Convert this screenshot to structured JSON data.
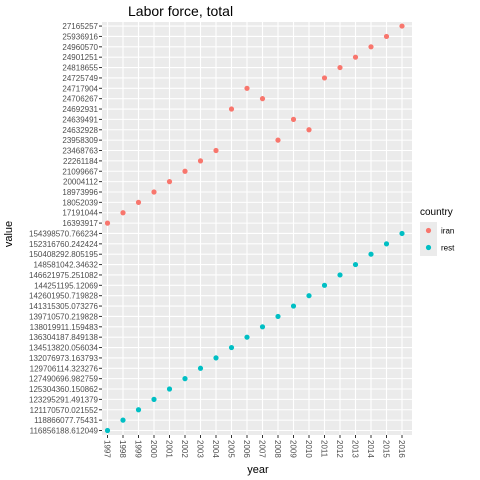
{
  "chart_data": {
    "type": "scatter",
    "title": "Labor force, total",
    "xlabel": "year",
    "ylabel": "value",
    "y_scale": "categorical",
    "grid": true,
    "legend_position": "right",
    "legend": {
      "title": "country",
      "entries": [
        {
          "name": "iran",
          "color": "#F8766D"
        },
        {
          "name": "rest",
          "color": "#00BFC4"
        }
      ]
    },
    "x": [
      "1997",
      "1998",
      "1999",
      "2000",
      "2001",
      "2002",
      "2003",
      "2004",
      "2005",
      "2006",
      "2007",
      "2008",
      "2009",
      "2010",
      "2011",
      "2012",
      "2013",
      "2014",
      "2015",
      "2016"
    ],
    "y_labels": [
      "116856188.612049",
      "118866077.75431",
      "121170570.021552",
      "123295291.491379",
      "125304360.150862",
      "127490696.982759",
      "129706114.323276",
      "132076973.163793",
      "134513820.056034",
      "136304187.849138",
      "138019911.159483",
      "139710570.219828",
      "141315305.073276",
      "142601950.719828",
      "144251195.12069",
      "146621975.251082",
      "148581042.34632",
      "150408292.805195",
      "152316760.242424",
      "154398570.766234",
      "16393917",
      "17191044",
      "18052039",
      "18973996",
      "20004112",
      "21099667",
      "22261184",
      "23468763",
      "23958309",
      "24632928",
      "24639491",
      "24692931",
      "24706267",
      "24717904",
      "24725749",
      "24818655",
      "24901251",
      "24960570",
      "25936916",
      "27165257"
    ],
    "series": [
      {
        "name": "iran",
        "color": "#F8766D",
        "values": [
          "16393917",
          "17191044",
          "18052039",
          "18973996",
          "20004112",
          "21099667",
          "22261184",
          "23468763",
          "24692931",
          "24717904",
          "24706267",
          "23958309",
          "24639491",
          "24632928",
          "24725749",
          "24818655",
          "24901251",
          "24960570",
          "25936916",
          "27165257"
        ]
      },
      {
        "name": "rest",
        "color": "#00BFC4",
        "values": [
          "116856188.612049",
          "118866077.75431",
          "121170570.021552",
          "123295291.491379",
          "125304360.150862",
          "127490696.982759",
          "129706114.323276",
          "132076973.163793",
          "134513820.056034",
          "136304187.849138",
          "138019911.159483",
          "139710570.219828",
          "141315305.073276",
          "142601950.719828",
          "144251195.12069",
          "146621975.251082",
          "148581042.34632",
          "150408292.805195",
          "152316760.242424",
          "154398570.766234"
        ]
      }
    ]
  }
}
